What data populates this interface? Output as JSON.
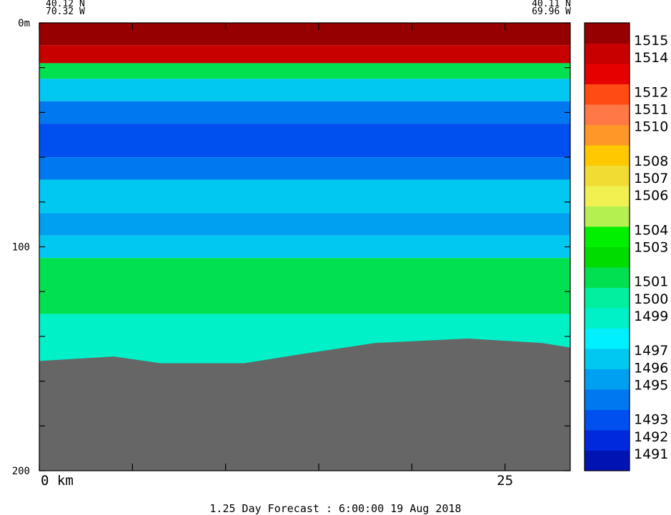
{
  "header": {
    "left_lat": "40.12 N",
    "left_lon": "70.32 W",
    "right_lat": "40.11 N",
    "right_lon": "69.96 W"
  },
  "footer": {
    "caption": "1.25 Day Forecast :  6:00:00  19 Aug 2018"
  },
  "colors": {
    "land": "#666666",
    "scale": [
      "#0014b4",
      "#0028dc",
      "#0050f0",
      "#0078f0",
      "#00a0f0",
      "#00c8f0",
      "#00f0ff",
      "#00f0c8",
      "#00f0a0",
      "#00e050",
      "#00dc00",
      "#00f000",
      "#b4f050",
      "#f0f050",
      "#f0dc32",
      "#ffc800",
      "#ff9628",
      "#ff7846",
      "#ff4b14",
      "#e60000",
      "#c80000",
      "#960000"
    ]
  },
  "chart_data": {
    "type": "heatmap",
    "title": "",
    "xlabel": "",
    "ylabel": "",
    "x_unit": "km",
    "y_unit": "m",
    "xlim": [
      0,
      28.5
    ],
    "ylim": [
      200,
      0
    ],
    "x_ticks": [
      0,
      5,
      10,
      15,
      20,
      25
    ],
    "x_tick_labels": [
      {
        "value": 0,
        "label": "0 km"
      },
      {
        "value": 25,
        "label": "25"
      }
    ],
    "y_ticks": [
      0,
      20,
      40,
      60,
      80,
      100,
      120,
      140,
      160,
      180,
      200
    ],
    "y_tick_labels": [
      {
        "value": 0,
        "label": "0m"
      },
      {
        "value": 100,
        "label": "100"
      },
      {
        "value": 200,
        "label": "200"
      }
    ],
    "colorbar": {
      "min": 1490,
      "max": 1516,
      "ticks": [
        1491,
        1492,
        1493,
        1495,
        1496,
        1497,
        1499,
        1500,
        1501,
        1503,
        1504,
        1506,
        1507,
        1508,
        1510,
        1511,
        1512,
        1514,
        1515
      ]
    },
    "field_levels_by_depth": [
      {
        "depth": 0,
        "level": 1515
      },
      {
        "depth": 10,
        "level": 1514
      },
      {
        "depth": 18,
        "level": 1501
      },
      {
        "depth": 25,
        "level": 1497
      },
      {
        "depth": 35,
        "level": 1494
      },
      {
        "depth": 45,
        "level": 1493
      },
      {
        "depth": 60,
        "level": 1494
      },
      {
        "depth": 70,
        "level": 1496
      },
      {
        "depth": 85,
        "level": 1495
      },
      {
        "depth": 95,
        "level": 1497
      },
      {
        "depth": 105,
        "level": 1501
      },
      {
        "depth": 130,
        "level": 1499
      }
    ],
    "seafloor": [
      {
        "x": 0,
        "depth": 151
      },
      {
        "x": 4,
        "depth": 149
      },
      {
        "x": 6.5,
        "depth": 152
      },
      {
        "x": 11,
        "depth": 152
      },
      {
        "x": 14,
        "depth": 148
      },
      {
        "x": 18,
        "depth": 143
      },
      {
        "x": 23,
        "depth": 141
      },
      {
        "x": 27,
        "depth": 143
      },
      {
        "x": 28.5,
        "depth": 145
      }
    ]
  }
}
